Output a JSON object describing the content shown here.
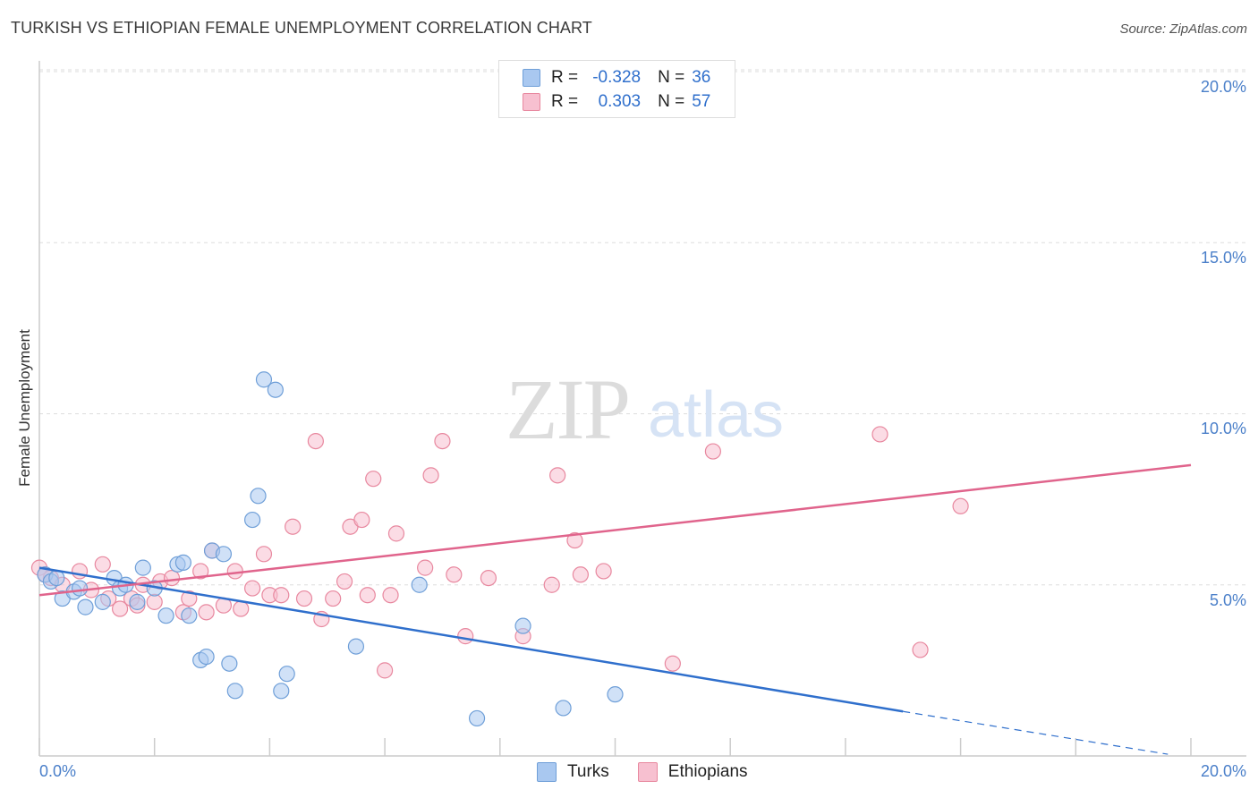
{
  "header": {
    "title": "TURKISH VS ETHIOPIAN FEMALE UNEMPLOYMENT CORRELATION CHART",
    "source": "Source: ZipAtlas.com"
  },
  "watermark": {
    "zip": "ZIP",
    "atlas": "atlas"
  },
  "legend": {
    "rows": [
      {
        "r_label": "R =",
        "r_value": "-0.328",
        "n_label": "N =",
        "n_value": "36"
      },
      {
        "r_label": "R =",
        "r_value": "0.303",
        "n_label": "N =",
        "n_value": "57"
      }
    ]
  },
  "bottom_legend": {
    "turks": "Turks",
    "ethiopians": "Ethiopians"
  },
  "colors": {
    "turks_fill": "#a9c8f0",
    "turks_stroke": "#6f9fd8",
    "turks_line": "#2f6fcc",
    "eth_fill": "#f7c0d0",
    "eth_stroke": "#e8889f",
    "eth_line": "#e0648c",
    "axis_text": "#4a7fc9"
  },
  "chart_data": {
    "type": "scatter",
    "title": "TURKISH VS ETHIOPIAN FEMALE UNEMPLOYMENT CORRELATION CHART",
    "xlabel": "",
    "ylabel": "Female Unemployment",
    "xlim": [
      0,
      20
    ],
    "ylim": [
      0,
      20
    ],
    "y_ticks": [
      {
        "value": 5,
        "label": "5.0%"
      },
      {
        "value": 10,
        "label": "10.0%"
      },
      {
        "value": 15,
        "label": "15.0%"
      },
      {
        "value": 20,
        "label": "20.0%"
      }
    ],
    "x_tick_labels": {
      "min": "0.0%",
      "max": "20.0%"
    },
    "grid": true,
    "series": [
      {
        "name": "Turks",
        "R": -0.328,
        "N": 36,
        "trend": {
          "x0": 0,
          "y0": 5.5,
          "x1": 15,
          "y1": 1.3,
          "dash_to_x": 19.6,
          "dash_to_y": 0.05
        },
        "points": [
          [
            0.1,
            5.3
          ],
          [
            0.4,
            4.6
          ],
          [
            0.6,
            4.8
          ],
          [
            0.7,
            4.9
          ],
          [
            0.8,
            4.35
          ],
          [
            1.1,
            4.5
          ],
          [
            1.3,
            5.2
          ],
          [
            1.4,
            4.9
          ],
          [
            1.5,
            5.0
          ],
          [
            1.7,
            4.5
          ],
          [
            1.8,
            5.5
          ],
          [
            2.0,
            4.9
          ],
          [
            2.2,
            4.1
          ],
          [
            2.4,
            5.6
          ],
          [
            2.5,
            5.65
          ],
          [
            2.6,
            4.1
          ],
          [
            2.8,
            2.8
          ],
          [
            2.9,
            2.9
          ],
          [
            3.0,
            6.0
          ],
          [
            3.2,
            5.9
          ],
          [
            3.3,
            2.7
          ],
          [
            3.4,
            1.9
          ],
          [
            3.7,
            6.9
          ],
          [
            3.8,
            7.6
          ],
          [
            3.9,
            11.0
          ],
          [
            4.1,
            10.7
          ],
          [
            4.2,
            1.9
          ],
          [
            4.3,
            2.4
          ],
          [
            5.5,
            3.2
          ],
          [
            6.6,
            5.0
          ],
          [
            7.6,
            1.1
          ],
          [
            8.4,
            3.8
          ],
          [
            9.1,
            1.4
          ],
          [
            10.0,
            1.8
          ],
          [
            0.2,
            5.1
          ],
          [
            0.3,
            5.2
          ]
        ]
      },
      {
        "name": "Ethiopians",
        "R": 0.303,
        "N": 57,
        "trend": {
          "x0": 0,
          "y0": 4.7,
          "x1": 20,
          "y1": 8.5
        },
        "points": [
          [
            0.0,
            5.5
          ],
          [
            0.2,
            5.2
          ],
          [
            0.4,
            5.0
          ],
          [
            0.7,
            5.4
          ],
          [
            0.9,
            4.85
          ],
          [
            1.1,
            5.6
          ],
          [
            1.2,
            4.6
          ],
          [
            1.4,
            4.3
          ],
          [
            1.6,
            4.6
          ],
          [
            1.7,
            4.4
          ],
          [
            1.8,
            5.0
          ],
          [
            2.0,
            4.5
          ],
          [
            2.1,
            5.1
          ],
          [
            2.3,
            5.2
          ],
          [
            2.5,
            4.2
          ],
          [
            2.6,
            4.6
          ],
          [
            2.8,
            5.4
          ],
          [
            2.9,
            4.2
          ],
          [
            3.0,
            6.0
          ],
          [
            3.2,
            4.4
          ],
          [
            3.4,
            5.4
          ],
          [
            3.5,
            4.3
          ],
          [
            3.7,
            4.9
          ],
          [
            3.9,
            5.9
          ],
          [
            4.0,
            4.7
          ],
          [
            4.2,
            4.7
          ],
          [
            4.4,
            6.7
          ],
          [
            4.6,
            4.6
          ],
          [
            4.8,
            9.2
          ],
          [
            4.9,
            4.0
          ],
          [
            5.1,
            4.6
          ],
          [
            5.3,
            5.1
          ],
          [
            5.4,
            6.7
          ],
          [
            5.6,
            6.9
          ],
          [
            5.7,
            4.7
          ],
          [
            5.8,
            8.1
          ],
          [
            6.0,
            2.5
          ],
          [
            6.1,
            4.7
          ],
          [
            6.2,
            6.5
          ],
          [
            6.7,
            5.5
          ],
          [
            6.8,
            8.2
          ],
          [
            7.0,
            9.2
          ],
          [
            7.2,
            5.3
          ],
          [
            7.4,
            3.5
          ],
          [
            7.8,
            5.2
          ],
          [
            8.4,
            3.5
          ],
          [
            8.9,
            5.0
          ],
          [
            9.0,
            8.2
          ],
          [
            9.3,
            6.3
          ],
          [
            9.4,
            5.3
          ],
          [
            9.8,
            5.4
          ],
          [
            11.0,
            2.7
          ],
          [
            11.7,
            8.9
          ],
          [
            14.6,
            9.4
          ],
          [
            15.3,
            3.1
          ],
          [
            16.0,
            7.3
          ],
          [
            0.1,
            5.3
          ]
        ]
      }
    ]
  }
}
